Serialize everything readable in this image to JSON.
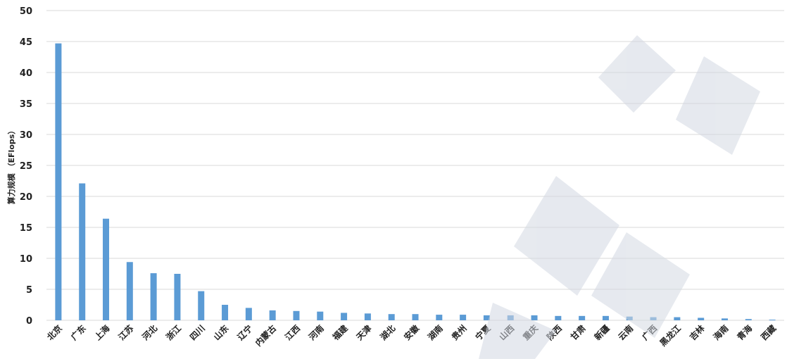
{
  "chart_data": {
    "type": "bar",
    "title": "",
    "xlabel": "",
    "ylabel": "算力规模 （EFlops）",
    "ylim": [
      0,
      50
    ],
    "yticks": [
      0,
      5,
      10,
      15,
      20,
      25,
      30,
      35,
      40,
      45,
      50
    ],
    "grid": true,
    "legend": "none",
    "bar_color": "#5b9bd5",
    "grid_color": "#d9d9d9",
    "categories": [
      "北京",
      "广东",
      "上海",
      "江苏",
      "河北",
      "浙江",
      "四川",
      "山东",
      "辽宁",
      "内蒙古",
      "江西",
      "河南",
      "福建",
      "天津",
      "湖北",
      "安徽",
      "湖南",
      "贵州",
      "宁夏",
      "山西",
      "重庆",
      "陕西",
      "甘肃",
      "新疆",
      "云南",
      "广西",
      "黑龙江",
      "吉林",
      "海南",
      "青海",
      "西藏"
    ],
    "values": [
      44.7,
      22.1,
      16.4,
      9.4,
      7.6,
      7.5,
      4.7,
      2.5,
      2.0,
      1.6,
      1.5,
      1.4,
      1.2,
      1.1,
      1.0,
      1.0,
      0.9,
      0.9,
      0.8,
      0.8,
      0.8,
      0.7,
      0.7,
      0.7,
      0.6,
      0.5,
      0.5,
      0.4,
      0.3,
      0.2,
      0.1
    ]
  }
}
